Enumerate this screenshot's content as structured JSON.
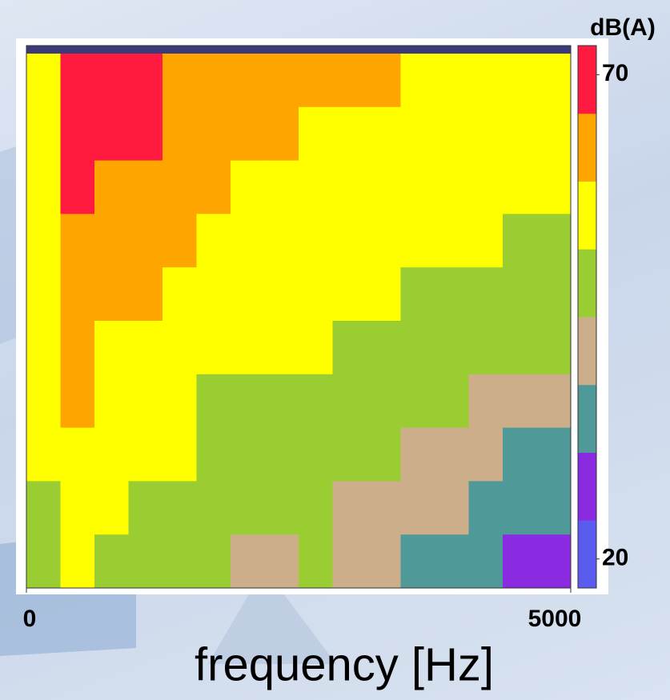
{
  "chart_data": {
    "type": "spectrogram",
    "xlabel": "frequency [Hz]",
    "zlabel": "dB(A)",
    "xlim": [
      0,
      5000
    ],
    "xticks": [
      0,
      5000
    ],
    "zlim": [
      17,
      73
    ],
    "zticks": [
      20,
      70
    ],
    "colors": [
      "#5a5cf0",
      "#8a2be2",
      "#4f9a98",
      "#cdae8a",
      "#9acd32",
      "#ffff00",
      "#ffa500",
      "#ff1a40"
    ],
    "z": [
      [
        58,
        70,
        70,
        68,
        65,
        63,
        62,
        61,
        60,
        59,
        59,
        58,
        58,
        58,
        57,
        57
      ],
      [
        58,
        69,
        68,
        66,
        63,
        61,
        60,
        59,
        58,
        57,
        57,
        57,
        56,
        56,
        55,
        55
      ],
      [
        57,
        67,
        64,
        63,
        61,
        59,
        58,
        57,
        56,
        55,
        55,
        55,
        54,
        54,
        53,
        53
      ],
      [
        56,
        65,
        62,
        61,
        59,
        57,
        56,
        55,
        54,
        53,
        53,
        53,
        52,
        52,
        51,
        51
      ],
      [
        55,
        63,
        60,
        59,
        58,
        55,
        54,
        54,
        53,
        52,
        52,
        51,
        50,
        50,
        49,
        49
      ],
      [
        54,
        61,
        58,
        57,
        56,
        53,
        52,
        52,
        52,
        50,
        50,
        49,
        48,
        47,
        46,
        46
      ],
      [
        53,
        59,
        56,
        55,
        54,
        51,
        50,
        50,
        51,
        48,
        48,
        46,
        45,
        43,
        42,
        42
      ],
      [
        52,
        57,
        54,
        52,
        52,
        49,
        48,
        48,
        50,
        46,
        45,
        43,
        41,
        39,
        37,
        37
      ],
      [
        50,
        55,
        52,
        50,
        50,
        47,
        46,
        46,
        49,
        44,
        42,
        40,
        38,
        35,
        33,
        33
      ],
      [
        48,
        52,
        50,
        48,
        47,
        45,
        44,
        43,
        47,
        41,
        39,
        37,
        35,
        32,
        30,
        30
      ]
    ]
  }
}
